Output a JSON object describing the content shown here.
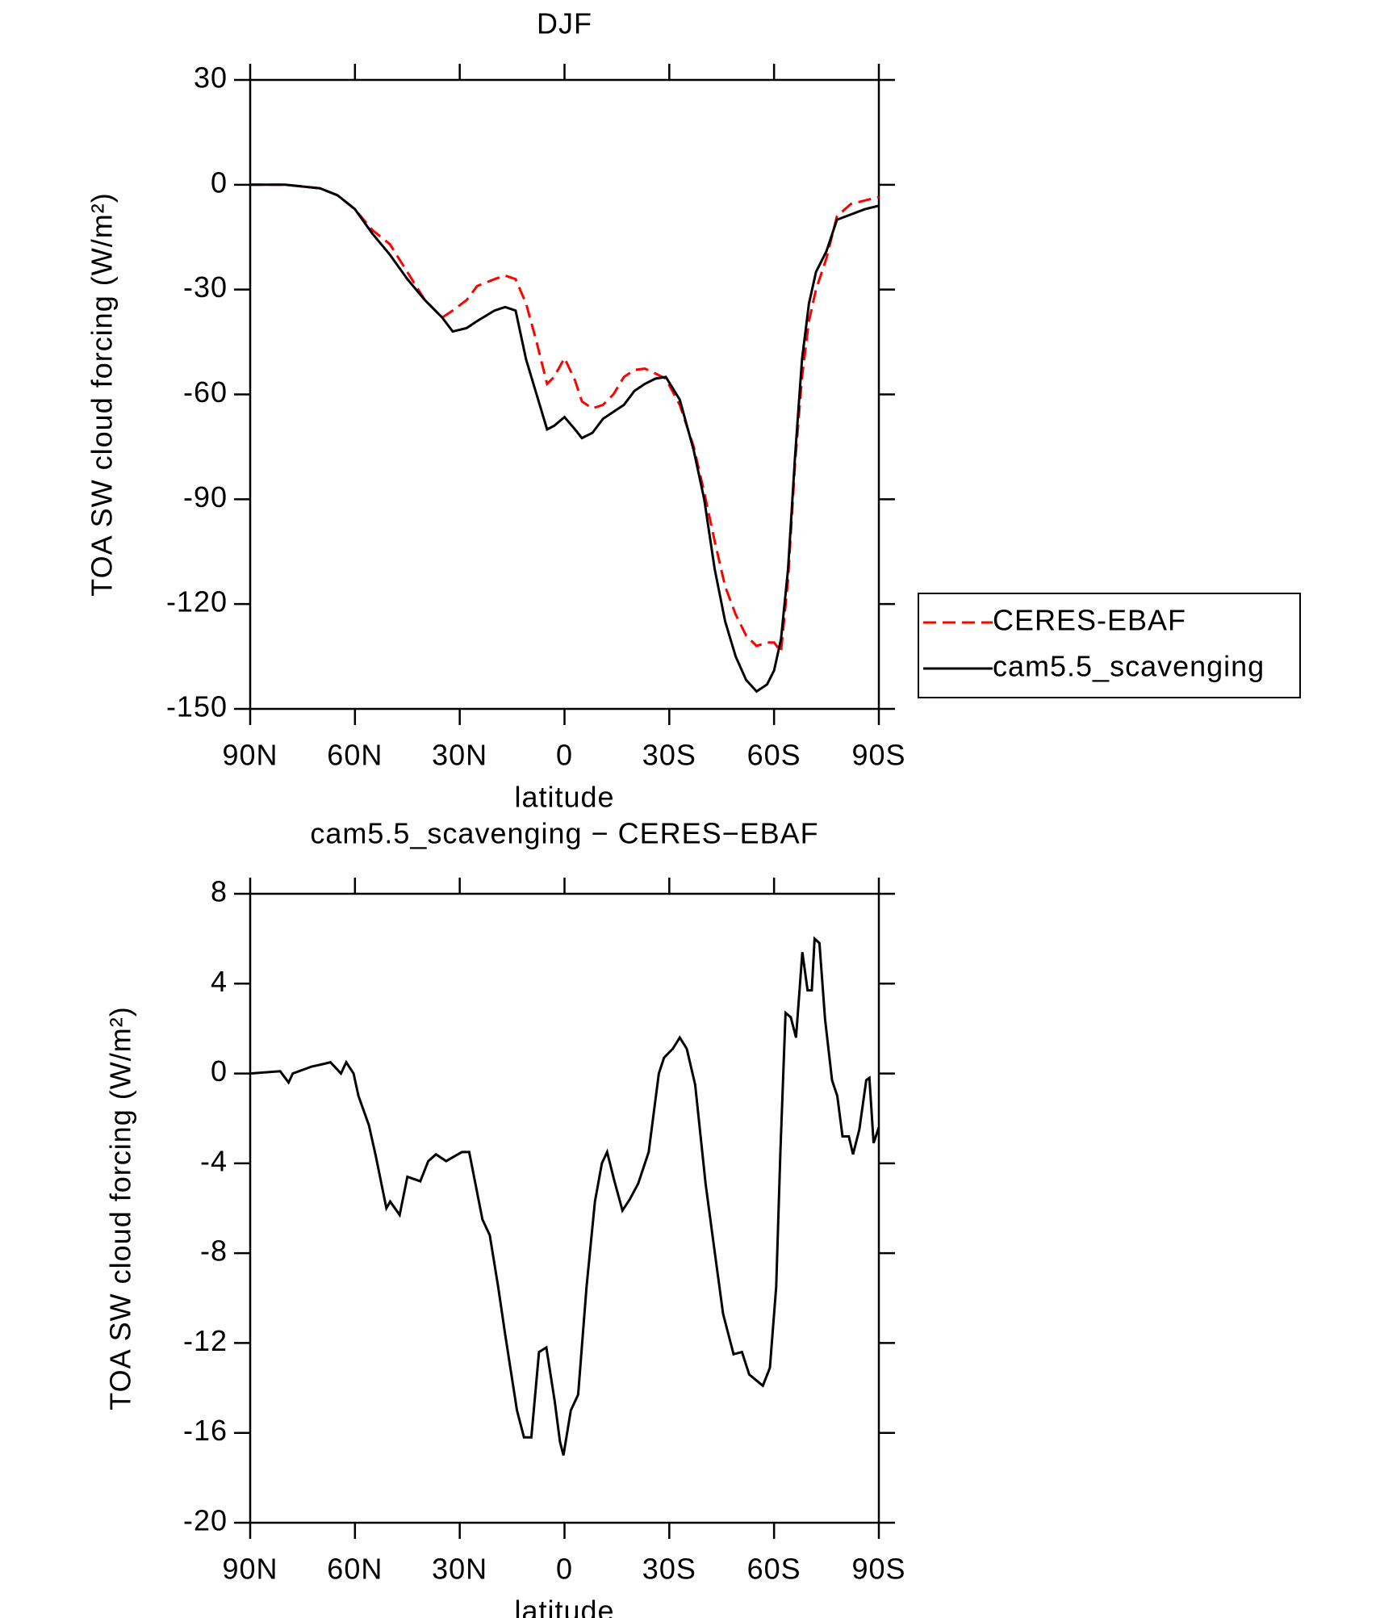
{
  "chart_data": [
    {
      "type": "line",
      "title": "DJF",
      "xlabel": "latitude",
      "ylabel": "TOA SW cloud forcing (W/m²)",
      "x": [
        90,
        80,
        70,
        65,
        60,
        55,
        50,
        45,
        40,
        35,
        32,
        28,
        25,
        20,
        17,
        14,
        11,
        8,
        5,
        3,
        0,
        -3,
        -5,
        -8,
        -11,
        -14,
        -17,
        -20,
        -23,
        -26,
        -29,
        -33,
        -37,
        -40,
        -43,
        -46,
        -49,
        -52,
        -55,
        -58,
        -60,
        -62,
        -64,
        -66,
        -68,
        -70,
        -72,
        -75,
        -78,
        -82,
        -86,
        -90
      ],
      "series": [
        {
          "name": "CERES-EBAF",
          "color": "#ff0000",
          "style": "dashed",
          "values": [
            0,
            0,
            -1,
            -3,
            -7,
            -13,
            -17,
            -25,
            -33,
            -38,
            -36,
            -33,
            -29,
            -27,
            -26,
            -27,
            -34,
            -45,
            -57,
            -55,
            -49.6,
            -56,
            -62,
            -64,
            -63,
            -60,
            -55,
            -53,
            -52.6,
            -54,
            -55.5,
            -63,
            -75,
            -88,
            -102,
            -115,
            -123,
            -129,
            -132,
            -131,
            -131,
            -133.6,
            -113,
            -80,
            -55,
            -39,
            -30,
            -21,
            -9,
            -5.5,
            -4.5,
            -3.5
          ]
        },
        {
          "name": "cam5.5_scavenging",
          "color": "#000000",
          "style": "solid",
          "values": [
            0,
            0,
            -1,
            -3,
            -7,
            -14,
            -20,
            -27,
            -33,
            -38,
            -42,
            -41,
            -39,
            -36,
            -35,
            -36,
            -50,
            -60,
            -70,
            -69,
            -66.5,
            -70,
            -72.5,
            -71,
            -67,
            -65,
            -63,
            -59,
            -57,
            -55.5,
            -55,
            -61.5,
            -76,
            -90,
            -110,
            -125,
            -135,
            -141.7,
            -145,
            -143,
            -139,
            -130,
            -110,
            -78,
            -50,
            -34,
            -25,
            -19,
            -10,
            -8.5,
            -7,
            -6
          ]
        }
      ],
      "xlim": [
        90,
        -90
      ],
      "xticks": [
        {
          "value": 90,
          "label": "90N"
        },
        {
          "value": 60,
          "label": "60N"
        },
        {
          "value": 30,
          "label": "30N"
        },
        0,
        {
          "value": -30,
          "label": "30S"
        },
        {
          "value": -60,
          "label": "60S"
        },
        {
          "value": -90,
          "label": "90S"
        }
      ],
      "ylim": [
        -150,
        30
      ],
      "yticks": [
        -150,
        -120,
        -90,
        -60,
        -30,
        0,
        30
      ],
      "legend": "right"
    },
    {
      "type": "line",
      "title": "cam5.5_scavenging − CERES−EBAF",
      "xlabel": "latitude",
      "ylabel": "TOA SW cloud forcing (W/m²)",
      "x": [
        90,
        81.4,
        79,
        77.8,
        72.5,
        69.6,
        67,
        64,
        62.5,
        60.4,
        59,
        56,
        54,
        51,
        49.9,
        47.2,
        45,
        41.3,
        39,
        36.8,
        33.9,
        29.4,
        27.3,
        23.5,
        21.4,
        19,
        17,
        13.6,
        11.6,
        9.5,
        7.3,
        5.2,
        2.8,
        1.3,
        0.3,
        -1.8,
        -3.9,
        -6.3,
        -8.7,
        -10.7,
        -12.2,
        -14.3,
        -16.6,
        -18.7,
        -21.1,
        -24.1,
        -27,
        -28.5,
        -31,
        -33,
        -35,
        -37.4,
        -40.4,
        -42.8,
        -45.4,
        -48.4,
        -50.8,
        -52.9,
        -55.2,
        -56.8,
        -58.8,
        -60.6,
        -61.8,
        -63.3,
        -64.8,
        -66.3,
        -68.1,
        -69.6,
        -70.8,
        -71.6,
        -73,
        -74.6,
        -76.6,
        -78.1,
        -79.6,
        -81.4,
        -82.6,
        -84.4,
        -86.4,
        -87.3,
        -88.5,
        -90
      ],
      "series": [
        {
          "color": "#000000",
          "style": "solid",
          "values": [
            0,
            0.1,
            -0.4,
            0,
            0.3,
            0.4,
            0.5,
            0,
            0.5,
            0,
            -1,
            -2.3,
            -3.7,
            -6,
            -5.7,
            -6.3,
            -4.6,
            -4.8,
            -3.9,
            -3.6,
            -3.9,
            -3.5,
            -3.5,
            -6.5,
            -7.2,
            -9.5,
            -11.6,
            -15,
            -16.2,
            -16.2,
            -12.4,
            -12.2,
            -14.6,
            -16.4,
            -17,
            -15,
            -14.3,
            -9.5,
            -5.7,
            -4,
            -3.5,
            -4.8,
            -6.1,
            -5.6,
            -4.9,
            -3.5,
            0,
            0.7,
            1.1,
            1.6,
            1.1,
            -0.5,
            -4.9,
            -7.7,
            -10.7,
            -12.5,
            -12.4,
            -13.4,
            -13.7,
            -13.9,
            -13.1,
            -9.5,
            -3.5,
            2.7,
            2.5,
            1.6,
            5.4,
            3.7,
            3.7,
            6,
            5.8,
            2.4,
            -0.3,
            -1,
            -2.8,
            -2.8,
            -3.6,
            -2.5,
            -0.3,
            -0.2,
            -3.1,
            -2.4
          ]
        }
      ],
      "xlim": [
        90,
        -90
      ],
      "xticks": [
        {
          "value": 90,
          "label": "90N"
        },
        {
          "value": 60,
          "label": "60N"
        },
        {
          "value": 30,
          "label": "30N"
        },
        0,
        {
          "value": -30,
          "label": "30S"
        },
        {
          "value": -60,
          "label": "60S"
        },
        {
          "value": -90,
          "label": "90S"
        }
      ],
      "ylim": [
        -20,
        8
      ],
      "yticks": [
        -20,
        -16,
        -12,
        -8,
        -4,
        0,
        4,
        8
      ]
    }
  ]
}
